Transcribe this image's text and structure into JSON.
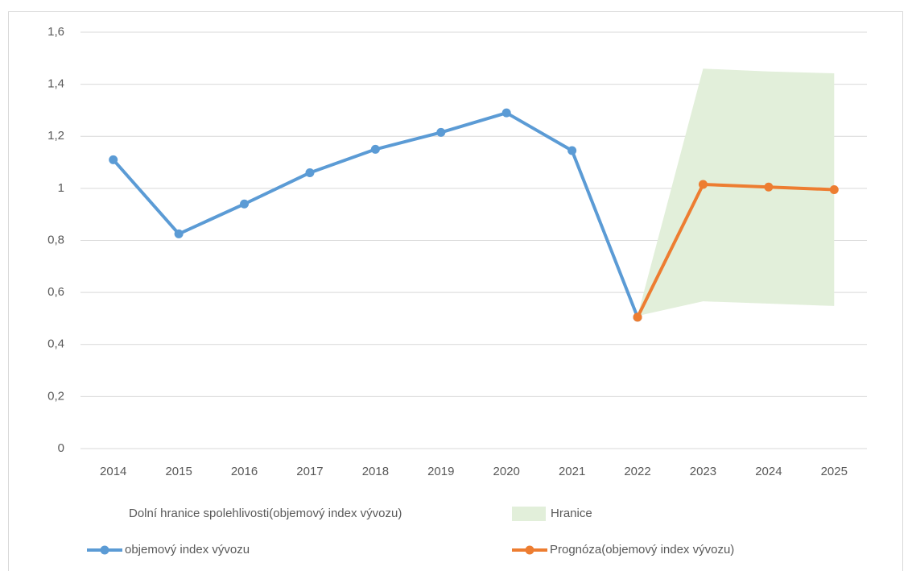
{
  "chart_data": {
    "type": "line",
    "categories": [
      "2014",
      "2015",
      "2016",
      "2017",
      "2018",
      "2019",
      "2020",
      "2021",
      "2022",
      "2023",
      "2024",
      "2025"
    ],
    "ylim": [
      0,
      1.6
    ],
    "yticks": [
      0,
      {
        "value": 0.2,
        "label": "0,2"
      },
      {
        "value": 0.4,
        "label": "0,4"
      },
      {
        "value": 0.6,
        "label": "0,6"
      },
      {
        "value": 0.8,
        "label": "0,8"
      },
      1,
      {
        "value": 1.2,
        "label": "1,2"
      },
      {
        "value": 1.4,
        "label": "1,4"
      },
      {
        "value": 1.6,
        "label": "1,6"
      }
    ],
    "grid": true,
    "series": [
      {
        "name": "Dolní hranice spolehlivosti(objemový index vývozu)",
        "kind": "stack-base",
        "color": "none",
        "values": [
          null,
          null,
          null,
          null,
          null,
          null,
          null,
          null,
          0.51,
          0.566,
          0.557,
          0.548
        ]
      },
      {
        "name": "Hranice",
        "kind": "stack-area",
        "color": "#e2efda",
        "values": [
          null,
          null,
          null,
          null,
          null,
          null,
          null,
          null,
          0,
          0.894,
          0.892,
          0.894
        ]
      },
      {
        "name": "objemový index vývozu",
        "kind": "line",
        "color": "#5b9bd5",
        "values": [
          1.11,
          0.825,
          0.94,
          1.06,
          1.15,
          1.215,
          1.29,
          1.145,
          0.505,
          null,
          null,
          null
        ]
      },
      {
        "name": "Prognóza(objemový index vývozu)",
        "kind": "line",
        "color": "#ed7d31",
        "values": [
          null,
          null,
          null,
          null,
          null,
          null,
          null,
          null,
          0.505,
          1.015,
          1.005,
          0.995
        ]
      }
    ]
  }
}
